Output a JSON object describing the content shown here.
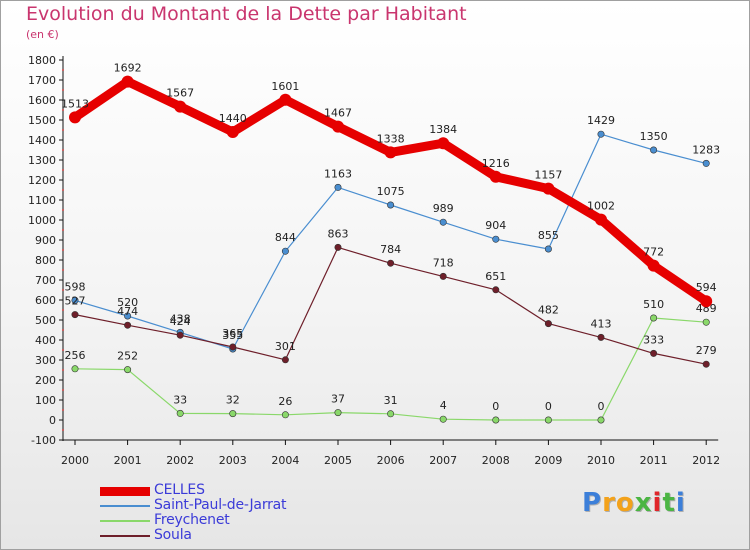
{
  "chart_data": {
    "type": "line",
    "title": "Evolution du Montant de la Dette par Habitant",
    "subtitle": "(en €)",
    "x": [
      "2000",
      "2001",
      "2002",
      "2003",
      "2004",
      "2005",
      "2006",
      "2007",
      "2008",
      "2009",
      "2010",
      "2011",
      "2012"
    ],
    "ylim": [
      -100,
      1800
    ],
    "yticks": [
      -100,
      0,
      100,
      200,
      300,
      400,
      500,
      600,
      700,
      800,
      900,
      1000,
      1100,
      1200,
      1300,
      1400,
      1500,
      1600,
      1700,
      1800
    ],
    "grid": false,
    "legend_position": "bottom-left",
    "series": [
      {
        "name": "CELLES",
        "color": "#e60000",
        "emphasis": true,
        "values": [
          1513,
          1692,
          1567,
          1440,
          1601,
          1467,
          1338,
          1384,
          1216,
          1157,
          1002,
          772,
          594
        ]
      },
      {
        "name": "Saint-Paul-de-Jarrat",
        "color": "#4a8ed0",
        "values": [
          598,
          520,
          438,
          355,
          844,
          1163,
          1075,
          989,
          904,
          855,
          1429,
          1350,
          1283
        ]
      },
      {
        "name": "Freychenet",
        "color": "#8ad86a",
        "values": [
          256,
          252,
          33,
          32,
          26,
          37,
          31,
          4,
          0,
          0,
          0,
          510,
          489
        ]
      },
      {
        "name": "Soula",
        "color": "#6e1f2a",
        "values": [
          527,
          474,
          424,
          365,
          301,
          863,
          784,
          718,
          651,
          482,
          413,
          333,
          279
        ]
      }
    ]
  },
  "brand": {
    "name": "Proxiti",
    "letters": [
      {
        "ch": "P",
        "color": "#3c7fd9"
      },
      {
        "ch": "r",
        "color": "#f3a21b"
      },
      {
        "ch": "o",
        "color": "#f3a21b"
      },
      {
        "ch": "x",
        "color": "#4bb543"
      },
      {
        "ch": "i",
        "color": "#e0262b"
      },
      {
        "ch": "t",
        "color": "#4bb543"
      },
      {
        "ch": "i",
        "color": "#3c7fd9"
      }
    ]
  }
}
